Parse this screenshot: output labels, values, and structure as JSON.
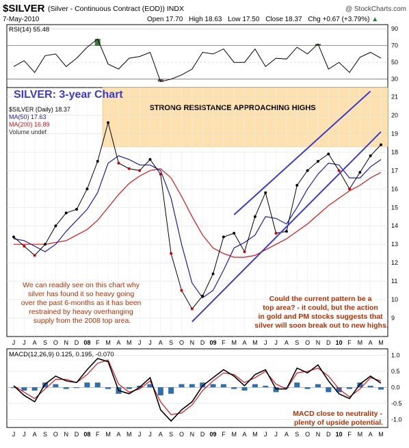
{
  "header": {
    "symbol": "$SILVER",
    "description": "(Silver - Continuous Contract (EOD)) INDX",
    "source": "@ StockCharts.com",
    "date": "7-May-2010",
    "open_label": "Open",
    "open": "17.70",
    "high_label": "High",
    "high": "18.63",
    "low_label": "Low",
    "low": "17.50",
    "close_label": "Close",
    "close": "18.37",
    "chg_label": "Chg",
    "chg": "+0.67 (+3.79%)",
    "chg_arrow": "▲"
  },
  "colors": {
    "price_up": "#000000",
    "price_down": "#cc0000",
    "ma50": "#1a1aa6",
    "ma200": "#dd1111",
    "resistance_fill": "#fde2b0",
    "annotation_red": "#b33000",
    "annotation_blue": "#4444cc",
    "trendline": "#3a3ad0",
    "macd_hist": "#2f6fb0"
  },
  "chart_data": [
    {
      "type": "line",
      "panel": "rsi",
      "legend": "RSI(14) 55.48",
      "ylim": [
        20,
        95
      ],
      "yticks": [
        30,
        50,
        70,
        90
      ],
      "overbought": 70,
      "oversold": 30,
      "x": [
        "2007-06",
        "2007-07",
        "2007-08",
        "2007-09",
        "2007-10",
        "2007-11",
        "2007-12",
        "2008-01",
        "2008-02",
        "2008-03",
        "2008-04",
        "2008-05",
        "2008-06",
        "2008-07",
        "2008-08",
        "2008-09",
        "2008-10",
        "2008-11",
        "2008-12",
        "2009-01",
        "2009-02",
        "2009-03",
        "2009-04",
        "2009-05",
        "2009-06",
        "2009-07",
        "2009-08",
        "2009-09",
        "2009-10",
        "2009-11",
        "2009-12",
        "2010-01",
        "2010-02",
        "2010-03",
        "2010-04",
        "2010-05"
      ],
      "values": [
        45,
        52,
        38,
        58,
        60,
        45,
        55,
        68,
        78,
        48,
        42,
        55,
        57,
        62,
        27,
        30,
        35,
        42,
        62,
        60,
        66,
        50,
        50,
        66,
        45,
        55,
        54,
        68,
        60,
        72,
        42,
        50,
        38,
        56,
        62,
        55
      ]
    },
    {
      "type": "line",
      "panel": "price",
      "title": "SILVER: 3-year Chart",
      "legend": [
        "$SILVER (Daily) 18.37",
        "MA(50) 17.63",
        "MA(200) 16.89",
        "Volume undef"
      ],
      "ylim": [
        8,
        21.5
      ],
      "yticks": [
        9,
        10,
        11,
        12,
        13,
        14,
        15,
        16,
        17,
        18,
        19,
        20,
        21
      ],
      "xtick_labels": [
        "J",
        "J",
        "A",
        "S",
        "O",
        "N",
        "D",
        "08",
        "F",
        "M",
        "A",
        "M",
        "J",
        "J",
        "A",
        "S",
        "O",
        "N",
        "D",
        "09",
        "F",
        "M",
        "A",
        "M",
        "J",
        "J",
        "A",
        "S",
        "O",
        "N",
        "D",
        "10",
        "F",
        "M",
        "A",
        "M"
      ],
      "x": [
        "2007-06",
        "2007-07",
        "2007-08",
        "2007-09",
        "2007-10",
        "2007-11",
        "2007-12",
        "2008-01",
        "2008-02",
        "2008-03",
        "2008-04",
        "2008-05",
        "2008-06",
        "2008-07",
        "2008-08",
        "2008-09",
        "2008-10",
        "2008-11",
        "2008-12",
        "2009-01",
        "2009-02",
        "2009-03",
        "2009-04",
        "2009-05",
        "2009-06",
        "2009-07",
        "2009-08",
        "2009-09",
        "2009-10",
        "2009-11",
        "2009-12",
        "2010-01",
        "2010-02",
        "2010-03",
        "2010-04",
        "2010-05"
      ],
      "series": [
        {
          "name": "$SILVER (Daily)",
          "values": [
            13.4,
            12.9,
            12.4,
            13.0,
            14.0,
            14.7,
            14.9,
            16.0,
            17.5,
            19.6,
            17.4,
            17.1,
            17.0,
            17.6,
            16.8,
            12.5,
            10.5,
            9.5,
            10.2,
            11.4,
            13.4,
            13.6,
            12.6,
            14.5,
            15.8,
            13.6,
            13.7,
            16.2,
            17.0,
            17.5,
            17.9,
            17.0,
            16.0,
            16.9,
            17.8,
            18.4
          ]
        },
        {
          "name": "MA(50)",
          "values": [
            13.3,
            13.2,
            12.9,
            12.6,
            13.0,
            13.7,
            14.3,
            14.9,
            15.8,
            17.4,
            17.8,
            17.6,
            17.3,
            17.3,
            17.0,
            15.5,
            13.0,
            10.9,
            10.1,
            10.5,
            11.6,
            12.8,
            13.1,
            13.5,
            14.5,
            14.4,
            14.1,
            15.0,
            16.0,
            16.8,
            17.4,
            17.3,
            16.6,
            16.6,
            17.2,
            17.6
          ]
        },
        {
          "name": "MA(200)",
          "values": [
            13.0,
            13.0,
            13.0,
            13.0,
            13.1,
            13.2,
            13.5,
            13.8,
            14.3,
            15.0,
            15.7,
            16.3,
            16.7,
            17.0,
            17.1,
            16.6,
            15.6,
            14.5,
            13.5,
            12.8,
            12.5,
            12.3,
            12.3,
            12.4,
            12.7,
            13.0,
            13.3,
            13.7,
            14.1,
            14.6,
            15.1,
            15.5,
            15.9,
            16.2,
            16.6,
            16.9
          ]
        }
      ],
      "resistance_zone": {
        "from": 18.3,
        "to": 21.5,
        "label": "STRONG RESISTANCE APPROACHING HIGHS"
      },
      "trendlines": [
        {
          "from": [
            "2008-11",
            8.8
          ],
          "to": [
            "2010-05",
            19.1
          ]
        },
        {
          "from": [
            "2009-03",
            14.6
          ],
          "to": [
            "2010-04",
            21.3
          ]
        }
      ],
      "annotations": [
        "We can readily see on this chart why silver has found it so heavy going over the past 6-months as it has been restrained by heavy overhanging supply from the 2008 top area.",
        "Could the current pattern be a top area? - it could, but the action in gold and PM stocks suggests that silver will soon break out to new highs."
      ]
    },
    {
      "type": "line",
      "panel": "macd",
      "legend": "MACD(12,26,9) 0.125, 0.195, -0.070",
      "ylim": [
        -1.25,
        1.2
      ],
      "yticks": [
        -1.0,
        -0.5,
        0.0,
        0.5,
        1.0
      ],
      "x": [
        "2007-06",
        "2007-07",
        "2007-08",
        "2007-09",
        "2007-10",
        "2007-11",
        "2007-12",
        "2008-01",
        "2008-02",
        "2008-03",
        "2008-04",
        "2008-05",
        "2008-06",
        "2008-07",
        "2008-08",
        "2008-09",
        "2008-10",
        "2008-11",
        "2008-12",
        "2009-01",
        "2009-02",
        "2009-03",
        "2009-04",
        "2009-05",
        "2009-06",
        "2009-07",
        "2009-08",
        "2009-09",
        "2009-10",
        "2009-11",
        "2009-12",
        "2010-01",
        "2010-02",
        "2010-03",
        "2010-04",
        "2010-05"
      ],
      "series": [
        {
          "name": "MACD",
          "values": [
            0.05,
            -0.25,
            -0.45,
            0.1,
            0.35,
            0.2,
            0.15,
            0.55,
            0.9,
            0.8,
            -0.1,
            -0.2,
            0.0,
            0.3,
            -0.7,
            -1.05,
            -0.7,
            -0.45,
            0.05,
            0.3,
            0.55,
            0.35,
            0.05,
            0.4,
            0.55,
            -0.05,
            -0.05,
            0.6,
            0.45,
            0.7,
            0.2,
            -0.2,
            -0.35,
            0.1,
            0.35,
            0.13
          ]
        },
        {
          "name": "Signal",
          "values": [
            0.05,
            -0.15,
            -0.35,
            -0.05,
            0.25,
            0.25,
            0.15,
            0.4,
            0.75,
            0.85,
            0.1,
            -0.15,
            -0.05,
            0.2,
            -0.45,
            -0.85,
            -0.8,
            -0.55,
            -0.1,
            0.2,
            0.45,
            0.4,
            0.15,
            0.3,
            0.5,
            0.1,
            -0.05,
            0.45,
            0.5,
            0.6,
            0.35,
            -0.05,
            -0.3,
            -0.05,
            0.3,
            0.2
          ]
        }
      ],
      "annotation": "MACD close to neutrality - plenty of upside potential."
    }
  ]
}
